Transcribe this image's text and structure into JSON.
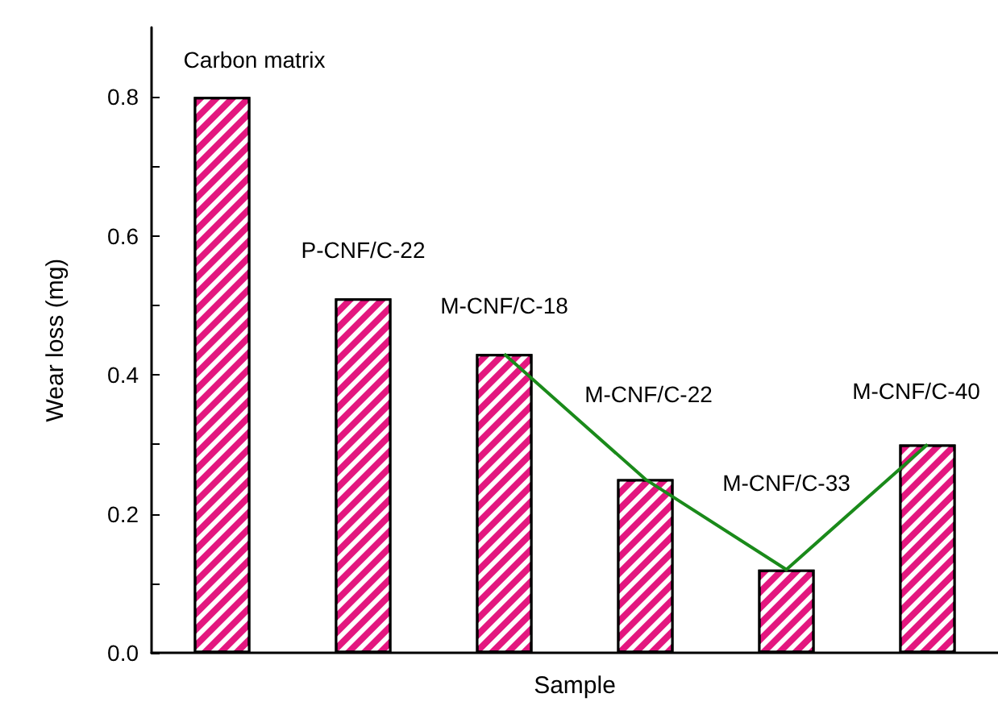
{
  "chart_data": {
    "type": "bar",
    "xlabel": "Sample",
    "ylabel": "Wear loss (mg)",
    "categories": [
      null,
      null,
      null,
      null,
      null,
      null
    ],
    "annotations": [
      "Carbon matrix",
      "P-CNF/C-22",
      "M-CNF/C-18",
      "M-CNF/C-22",
      "M-CNF/C-33",
      "M-CNF/C-40"
    ],
    "series": [
      {
        "color": "#e3177f",
        "values": [
          0.8,
          0.51,
          0.43,
          0.25,
          0.12,
          0.3
        ]
      },
      {
        "type": "line",
        "color": "#1a8a1a",
        "values": [
          null,
          null,
          0.43,
          0.25,
          0.12,
          0.3
        ]
      }
    ],
    "ylim": [
      0,
      0.9
    ],
    "yticks": [
      {
        "value": 0,
        "label": "0.0"
      },
      {
        "value": 0.1,
        "label": null
      },
      0.2,
      {
        "value": 0.3,
        "label": null
      },
      0.4,
      {
        "value": 0.5,
        "label": null
      },
      0.6,
      {
        "value": 0.7,
        "label": null
      },
      0.8
    ],
    "grid": false,
    "marker": "none",
    "line_style": "solid"
  }
}
